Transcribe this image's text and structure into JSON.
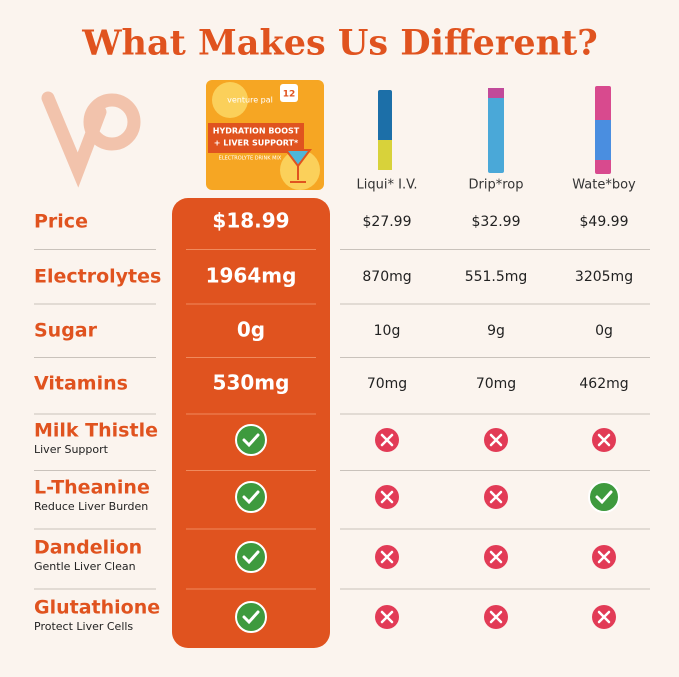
{
  "title": "What Makes Us Different?",
  "product": {
    "count": "12",
    "brand": "venture pal",
    "line1": "HYDRATION BOOST",
    "line2": "+ LIVER SUPPORT*",
    "line3": "ELECTROLYTE DRINK MIX"
  },
  "competitors": [
    "Liqui* I.V.",
    "Drip*rop",
    "Wate*boy"
  ],
  "rows": [
    {
      "label": "Price",
      "ours": "$18.99",
      "others": [
        "$27.99",
        "$32.99",
        "$49.99"
      ]
    },
    {
      "label": "Electrolytes",
      "ours": "1964mg",
      "others": [
        "870mg",
        "551.5mg",
        "3205mg"
      ]
    },
    {
      "label": "Sugar",
      "ours": "0g",
      "others": [
        "10g",
        "9g",
        "0g"
      ]
    },
    {
      "label": "Vitamins",
      "ours": "530mg",
      "others": [
        "70mg",
        "70mg",
        "462mg"
      ]
    },
    {
      "label": "Milk Thistle",
      "sublabel": "Liver Support",
      "ours": true,
      "others": [
        false,
        false,
        false
      ]
    },
    {
      "label": "L-Theanine",
      "sublabel": "Reduce Liver Burden",
      "ours": true,
      "others": [
        false,
        false,
        true
      ]
    },
    {
      "label": "Dandelion",
      "sublabel": "Gentle Liver Clean",
      "ours": true,
      "others": [
        false,
        false,
        false
      ]
    },
    {
      "label": "Glutathione",
      "sublabel": "Protect Liver Cells",
      "ours": true,
      "others": [
        false,
        false,
        false
      ]
    }
  ]
}
